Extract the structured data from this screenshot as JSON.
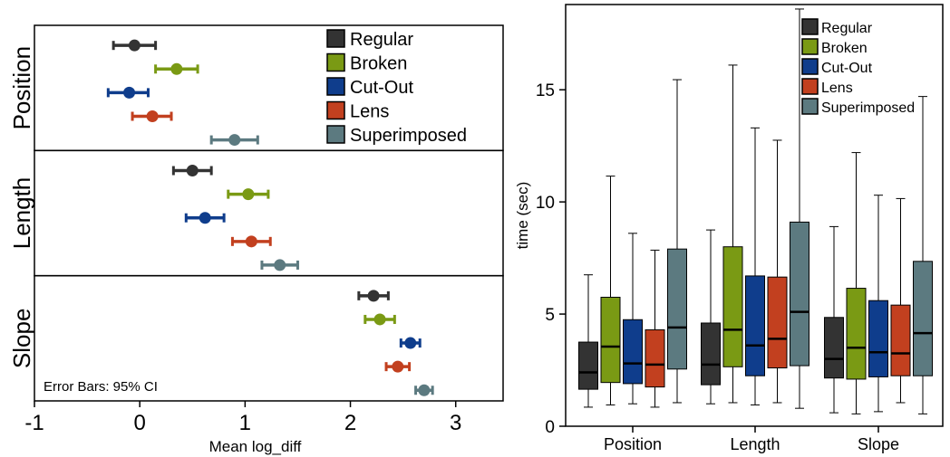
{
  "chart_data": [
    {
      "type": "scatter",
      "subtype": "dot-with-error-bars",
      "xlabel": "Mean log_diff",
      "xlim": [
        -1,
        3.45
      ],
      "xticks": [
        -1,
        0,
        1,
        2,
        3
      ],
      "annotation": "Error Bars: 95% CI",
      "legend": {
        "position": "top-right"
      },
      "series_colors": {
        "Regular": "#333333",
        "Broken": "#7a9a14",
        "Cut-Out": "#0f3d8c",
        "Lens": "#c2401f",
        "Superimposed": "#5c7a80"
      },
      "series": [
        "Regular",
        "Broken",
        "Cut-Out",
        "Lens",
        "Superimposed"
      ],
      "panels": [
        {
          "name": "Position",
          "points": [
            {
              "series": "Regular",
              "mean": -0.05,
              "low": -0.25,
              "high": 0.15
            },
            {
              "series": "Broken",
              "mean": 0.35,
              "low": 0.15,
              "high": 0.55
            },
            {
              "series": "Cut-Out",
              "mean": -0.1,
              "low": -0.3,
              "high": 0.08
            },
            {
              "series": "Lens",
              "mean": 0.12,
              "low": -0.07,
              "high": 0.3
            },
            {
              "series": "Superimposed",
              "mean": 0.9,
              "low": 0.68,
              "high": 1.12
            }
          ]
        },
        {
          "name": "Length",
          "points": [
            {
              "series": "Regular",
              "mean": 0.5,
              "low": 0.32,
              "high": 0.68
            },
            {
              "series": "Broken",
              "mean": 1.03,
              "low": 0.84,
              "high": 1.22
            },
            {
              "series": "Cut-Out",
              "mean": 0.62,
              "low": 0.44,
              "high": 0.8
            },
            {
              "series": "Lens",
              "mean": 1.06,
              "low": 0.88,
              "high": 1.24
            },
            {
              "series": "Superimposed",
              "mean": 1.33,
              "low": 1.16,
              "high": 1.5
            }
          ]
        },
        {
          "name": "Slope",
          "points": [
            {
              "series": "Regular",
              "mean": 2.22,
              "low": 2.08,
              "high": 2.36
            },
            {
              "series": "Broken",
              "mean": 2.28,
              "low": 2.14,
              "high": 2.42
            },
            {
              "series": "Cut-Out",
              "mean": 2.57,
              "low": 2.48,
              "high": 2.66
            },
            {
              "series": "Lens",
              "mean": 2.45,
              "low": 2.34,
              "high": 2.56
            },
            {
              "series": "Superimposed",
              "mean": 2.7,
              "low": 2.62,
              "high": 2.78
            }
          ]
        }
      ]
    },
    {
      "type": "box",
      "ylabel": "time (sec)",
      "ylim": [
        0,
        18.8
      ],
      "yticks": [
        0,
        5,
        10,
        15
      ],
      "categories": [
        "Position",
        "Length",
        "Slope"
      ],
      "legend": {
        "position": "top-right"
      },
      "series": [
        {
          "name": "Regular",
          "color": "#333333",
          "boxes": [
            {
              "min": 0.85,
              "q1": 1.65,
              "median": 2.4,
              "q3": 3.75,
              "max": 6.75
            },
            {
              "min": 1.0,
              "q1": 1.85,
              "median": 2.75,
              "q3": 4.6,
              "max": 8.75
            },
            {
              "min": 0.6,
              "q1": 2.15,
              "median": 3.0,
              "q3": 4.85,
              "max": 8.9
            }
          ]
        },
        {
          "name": "Broken",
          "color": "#7a9a14",
          "boxes": [
            {
              "min": 0.95,
              "q1": 1.95,
              "median": 3.55,
              "q3": 5.75,
              "max": 11.15
            },
            {
              "min": 1.05,
              "q1": 2.65,
              "median": 4.3,
              "q3": 8.0,
              "max": 16.1
            },
            {
              "min": 0.55,
              "q1": 2.1,
              "median": 3.5,
              "q3": 6.15,
              "max": 12.2
            }
          ]
        },
        {
          "name": "Cut-Out",
          "color": "#0f3d8c",
          "boxes": [
            {
              "min": 1.0,
              "q1": 1.9,
              "median": 2.8,
              "q3": 4.75,
              "max": 8.6
            },
            {
              "min": 0.95,
              "q1": 2.25,
              "median": 3.6,
              "q3": 6.7,
              "max": 13.3
            },
            {
              "min": 0.65,
              "q1": 2.2,
              "median": 3.3,
              "q3": 5.6,
              "max": 10.3
            }
          ]
        },
        {
          "name": "Lens",
          "color": "#c2401f",
          "boxes": [
            {
              "min": 0.85,
              "q1": 1.75,
              "median": 2.75,
              "q3": 4.3,
              "max": 7.85
            },
            {
              "min": 1.05,
              "q1": 2.6,
              "median": 3.9,
              "q3": 6.65,
              "max": 12.75
            },
            {
              "min": 1.05,
              "q1": 2.25,
              "median": 3.25,
              "q3": 5.4,
              "max": 10.15
            }
          ]
        },
        {
          "name": "Superimposed",
          "color": "#5c7a80",
          "boxes": [
            {
              "min": 1.05,
              "q1": 2.55,
              "median": 4.4,
              "q3": 7.9,
              "max": 15.45
            },
            {
              "min": 0.8,
              "q1": 2.7,
              "median": 5.1,
              "q3": 9.1,
              "max": 18.6
            },
            {
              "min": 0.55,
              "q1": 2.25,
              "median": 4.15,
              "q3": 7.35,
              "max": 14.7
            }
          ]
        }
      ]
    }
  ]
}
